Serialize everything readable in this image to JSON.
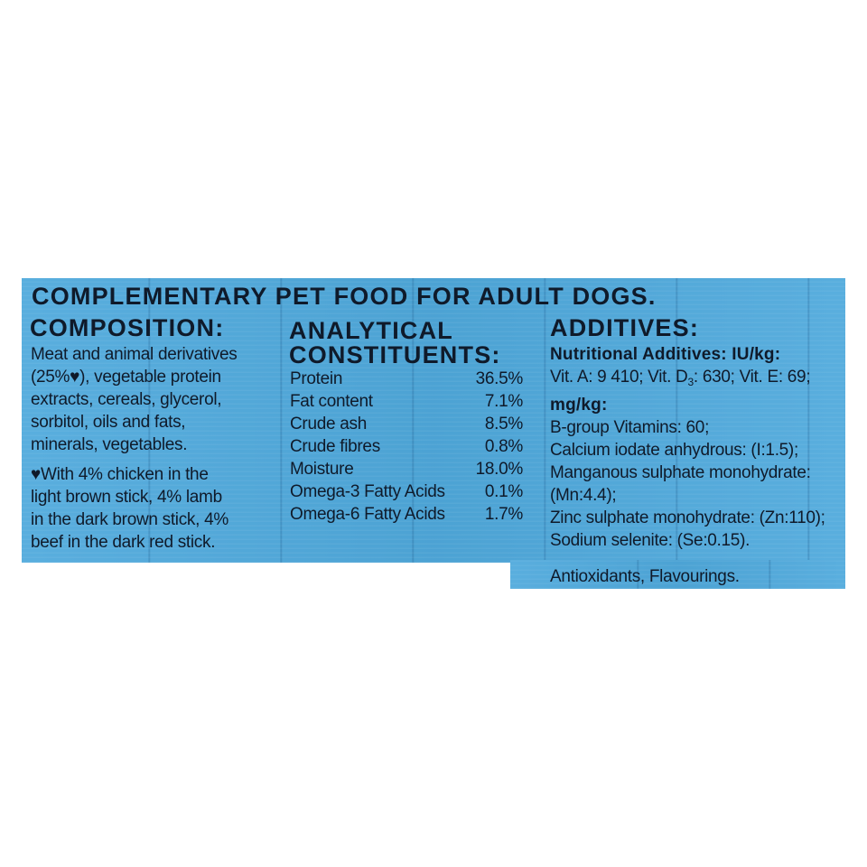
{
  "title": "COMPLEMENTARY PET FOOD FOR ADULT DOGS.",
  "composition": {
    "heading": "COMPOSITION:",
    "lines": [
      "Meat and animal derivatives",
      "(25%♥), vegetable protein",
      "extracts, cereals, glycerol,",
      "sorbitol, oils and fats,",
      "minerals, vegetables."
    ],
    "note_lines": [
      "♥With 4% chicken in the",
      "light brown stick, 4% lamb",
      "in the dark brown stick, 4%",
      "beef in the dark red stick."
    ]
  },
  "analytical": {
    "heading_line1": "ANALYTICAL",
    "heading_line2": "CONSTITUENTS:",
    "rows": [
      {
        "name": "Protein",
        "value": "36.5%"
      },
      {
        "name": "Fat content",
        "value": "7.1%"
      },
      {
        "name": "Crude ash",
        "value": "8.5%"
      },
      {
        "name": "Crude fibres",
        "value": "0.8%"
      },
      {
        "name": "Moisture",
        "value": "18.0%"
      },
      {
        "name": "Omega-3 Fatty Acids",
        "value": "0.1%"
      },
      {
        "name": "Omega-6 Fatty Acids",
        "value": "1.7%"
      }
    ]
  },
  "additives": {
    "heading": "ADDITIVES:",
    "sub1": "Nutritional Additives: IU/kg:",
    "vit_a": "Vit. A: 9 410; Vit. D",
    "vit_d_sub": "3",
    "vit_rest": ": 630; Vit. E: 69;",
    "sub2": "mg/kg:",
    "lines": [
      "B-group Vitamins: 60;",
      "Calcium iodate anhydrous: (I:1.5);",
      "Manganous sulphate monohydrate:",
      "(Mn:4.4);",
      "Zinc sulphate monohydrate: (Zn:110);",
      "Sodium selenite: (Se:0.15)."
    ],
    "footer": "Antioxidants, Flavourings."
  },
  "colors": {
    "panel": "#4fa9dc",
    "text": "#0f1a2a"
  }
}
